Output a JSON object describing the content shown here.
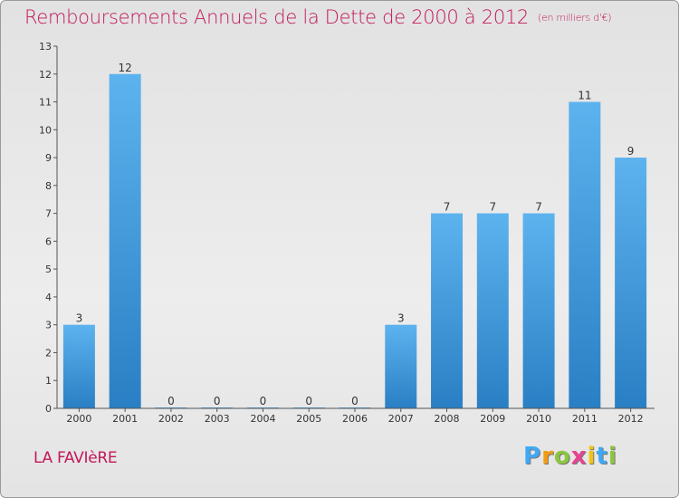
{
  "title": "Remboursements Annuels de la Dette de 2000 à 2012",
  "unit": "(en milliers d'€)",
  "commune": "LA FAVIèRE",
  "logo": {
    "letters": [
      "P",
      "r",
      "o",
      "x",
      "i",
      "t",
      "i"
    ],
    "colors": [
      "#3fa9f5",
      "#f39c12",
      "#8cc63f",
      "#e84393",
      "#f1c40f",
      "#3fa9f5",
      "#8cc63f"
    ]
  },
  "colors": {
    "bar": "#4aa3e6",
    "bar_dark": "#2a7fc4",
    "title": "#c2185b"
  },
  "chart_data": {
    "type": "bar",
    "title": "Remboursements Annuels de la Dette de 2000 à 2012",
    "xlabel": "",
    "ylabel": "",
    "categories": [
      "2000",
      "2001",
      "2002",
      "2003",
      "2004",
      "2005",
      "2006",
      "2007",
      "2008",
      "2009",
      "2010",
      "2011",
      "2012"
    ],
    "values": [
      3,
      12,
      0,
      0,
      0,
      0,
      0,
      3,
      7,
      7,
      7,
      11,
      9
    ],
    "labels": [
      "3",
      "12",
      "0",
      "0",
      "0",
      "0",
      "0",
      "3",
      "7",
      "7",
      "7",
      "11",
      "9"
    ],
    "yticks": [
      0,
      1,
      2,
      3,
      4,
      5,
      6,
      7,
      8,
      9,
      10,
      11,
      12,
      13
    ],
    "ylim": [
      0,
      13
    ],
    "grid": false
  }
}
